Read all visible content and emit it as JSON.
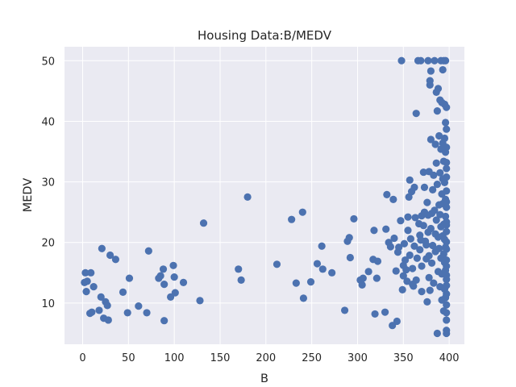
{
  "chart_data": {
    "type": "scatter",
    "title": "Housing Data:B/MEDV",
    "xlabel": "B",
    "ylabel": "MEDV",
    "xlim": [
      -19.8,
      416.6
    ],
    "ylim": [
      3.2,
      52.3
    ],
    "xticks": [
      0,
      50,
      100,
      150,
      200,
      250,
      300,
      350,
      400
    ],
    "yticks": [
      10,
      20,
      30,
      40,
      50
    ],
    "grid": true,
    "marker_color": "#4c72b0",
    "background_color": "#eaeaf2",
    "points": [
      [
        3,
        15
      ],
      [
        9,
        15
      ],
      [
        2,
        13.4
      ],
      [
        5,
        13.6
      ],
      [
        4,
        11.9
      ],
      [
        12,
        12.7
      ],
      [
        10,
        8.5
      ],
      [
        8,
        8.3
      ],
      [
        18,
        8.8
      ],
      [
        21,
        19
      ],
      [
        20,
        11
      ],
      [
        25,
        10.2
      ],
      [
        23,
        7.5
      ],
      [
        27,
        9.6
      ],
      [
        28,
        7.2
      ],
      [
        30,
        17.9
      ],
      [
        36,
        17.2
      ],
      [
        44,
        11.8
      ],
      [
        49,
        8.4
      ],
      [
        51,
        14.1
      ],
      [
        61,
        9.5
      ],
      [
        70,
        8.4
      ],
      [
        72,
        18.6
      ],
      [
        83,
        14.1
      ],
      [
        85,
        14.5
      ],
      [
        88,
        15.6
      ],
      [
        89,
        13.1
      ],
      [
        89,
        7.1
      ],
      [
        96,
        11
      ],
      [
        99,
        16.2
      ],
      [
        100,
        14.3
      ],
      [
        101,
        11.7
      ],
      [
        110,
        13.4
      ],
      [
        128,
        10.4
      ],
      [
        132,
        23.2
      ],
      [
        170,
        15.6
      ],
      [
        173,
        13.8
      ],
      [
        180,
        27.5
      ],
      [
        212,
        16.4
      ],
      [
        228,
        23.8
      ],
      [
        233,
        13.3
      ],
      [
        240,
        25
      ],
      [
        241,
        10.8
      ],
      [
        249,
        13.5
      ],
      [
        256,
        16.5
      ],
      [
        261,
        19.4
      ],
      [
        262,
        15.6
      ],
      [
        272,
        15
      ],
      [
        286,
        8.8
      ],
      [
        289,
        20.2
      ],
      [
        291,
        20.8
      ],
      [
        292,
        17.5
      ],
      [
        296,
        23.9
      ],
      [
        303,
        13.8
      ],
      [
        305,
        13
      ],
      [
        306,
        14.1
      ],
      [
        312,
        15.2
      ],
      [
        317,
        17.2
      ],
      [
        318,
        22
      ],
      [
        319,
        8.2
      ],
      [
        321,
        14.1
      ],
      [
        322,
        16.9
      ],
      [
        330,
        8.5
      ],
      [
        331,
        22.2
      ],
      [
        332,
        27.9
      ],
      [
        334,
        20
      ],
      [
        336,
        19.3
      ],
      [
        338,
        6.3
      ],
      [
        339,
        27.1
      ],
      [
        340,
        20.7
      ],
      [
        342,
        15.3
      ],
      [
        343,
        7.0
      ],
      [
        344,
        18.4
      ],
      [
        345,
        19.2
      ],
      [
        347,
        23.6
      ],
      [
        348,
        50
      ],
      [
        349,
        12.2
      ],
      [
        350,
        16.2
      ],
      [
        350,
        14.5
      ],
      [
        351,
        19.8
      ],
      [
        352,
        17.1
      ],
      [
        353,
        15.5
      ],
      [
        354,
        13.6
      ],
      [
        355,
        24.2
      ],
      [
        355,
        22
      ],
      [
        356,
        27.5
      ],
      [
        357,
        17.9
      ],
      [
        357,
        30.3
      ],
      [
        358,
        20.6
      ],
      [
        359,
        28.4
      ],
      [
        360,
        15.7
      ],
      [
        360,
        13.1
      ],
      [
        361,
        12.8
      ],
      [
        362,
        29.1
      ],
      [
        362,
        19.4
      ],
      [
        363,
        24.1
      ],
      [
        364,
        41.3
      ],
      [
        364,
        13.8
      ],
      [
        365,
        17.4
      ],
      [
        366,
        50
      ],
      [
        367,
        23.1
      ],
      [
        368,
        18.8
      ],
      [
        368,
        21.2
      ],
      [
        369,
        20.4
      ],
      [
        369,
        50
      ],
      [
        370,
        16.1
      ],
      [
        370,
        11.9
      ],
      [
        370,
        24.4
      ],
      [
        372,
        22.8
      ],
      [
        372,
        31.6
      ],
      [
        373,
        25.0
      ],
      [
        373,
        29.1
      ],
      [
        374,
        20.2
      ],
      [
        375,
        19.6
      ],
      [
        375,
        17.3
      ],
      [
        376,
        10.2
      ],
      [
        376,
        26.6
      ],
      [
        377,
        24.5
      ],
      [
        377,
        21.7
      ],
      [
        377,
        50
      ],
      [
        378,
        14.2
      ],
      [
        378,
        31.7
      ],
      [
        378,
        17.8
      ],
      [
        379,
        46.7
      ],
      [
        379,
        46
      ],
      [
        379,
        12.1
      ],
      [
        380,
        37
      ],
      [
        380,
        48.3
      ],
      [
        380,
        22.3
      ],
      [
        381,
        16.6
      ],
      [
        381,
        24.8
      ],
      [
        382,
        19.5
      ],
      [
        382,
        28.7
      ],
      [
        383,
        13.3
      ],
      [
        383,
        31.1
      ],
      [
        384,
        50
      ],
      [
        384,
        25.3
      ],
      [
        385,
        21.4
      ],
      [
        385,
        36.2
      ],
      [
        385,
        18.5
      ],
      [
        386,
        44.8
      ],
      [
        386,
        33.1
      ],
      [
        386,
        23.7
      ],
      [
        387,
        5
      ],
      [
        387,
        29.6
      ],
      [
        387,
        41.7
      ],
      [
        388,
        45.4
      ],
      [
        388,
        20.9
      ],
      [
        388,
        15.2
      ],
      [
        389,
        26.2
      ],
      [
        389,
        37.6
      ],
      [
        389,
        19
      ],
      [
        390,
        43.5
      ],
      [
        390,
        12.7
      ],
      [
        390,
        31.5
      ],
      [
        390,
        24.6
      ],
      [
        391,
        50
      ],
      [
        391,
        17.4
      ],
      [
        391,
        35.4
      ],
      [
        391,
        22.6
      ],
      [
        392,
        43.1
      ],
      [
        392,
        28
      ],
      [
        392,
        10.5
      ],
      [
        392,
        14.8
      ],
      [
        393,
        48.5
      ],
      [
        393,
        36.4
      ],
      [
        393,
        21.1
      ],
      [
        393,
        26.4
      ],
      [
        393,
        30.5
      ],
      [
        394,
        50
      ],
      [
        394,
        8.7
      ],
      [
        394,
        33.4
      ],
      [
        394,
        18.1
      ],
      [
        394,
        23
      ],
      [
        395,
        42.8
      ],
      [
        395,
        37.2
      ],
      [
        395,
        16.7
      ],
      [
        395,
        12.3
      ],
      [
        395,
        29.9
      ],
      [
        395,
        20.5
      ],
      [
        396,
        50
      ],
      [
        396,
        39.8
      ],
      [
        396,
        34.9
      ],
      [
        396,
        27.1
      ],
      [
        396,
        15.4
      ],
      [
        396,
        10.9
      ],
      [
        396,
        24.3
      ],
      [
        396,
        19.2
      ],
      [
        397,
        42.3
      ],
      [
        397,
        38.7
      ],
      [
        397,
        8.4
      ],
      [
        397,
        32.2
      ],
      [
        397,
        25.8
      ],
      [
        397,
        21.8
      ],
      [
        397,
        17.1
      ],
      [
        397,
        13.9
      ],
      [
        397,
        7.2
      ],
      [
        397,
        5.5
      ],
      [
        397,
        5
      ],
      [
        397,
        28.5
      ],
      [
        397,
        30.8
      ],
      [
        397,
        22.9
      ],
      [
        397,
        18.9
      ],
      [
        397,
        16.1
      ],
      [
        397,
        11.5
      ],
      [
        397,
        35.7
      ],
      [
        397,
        33.2
      ],
      [
        397,
        26.7
      ],
      [
        397,
        23.4
      ],
      [
        397,
        20.1
      ],
      [
        397,
        14.6
      ],
      [
        397,
        12.9
      ],
      [
        397,
        9.7
      ]
    ]
  }
}
